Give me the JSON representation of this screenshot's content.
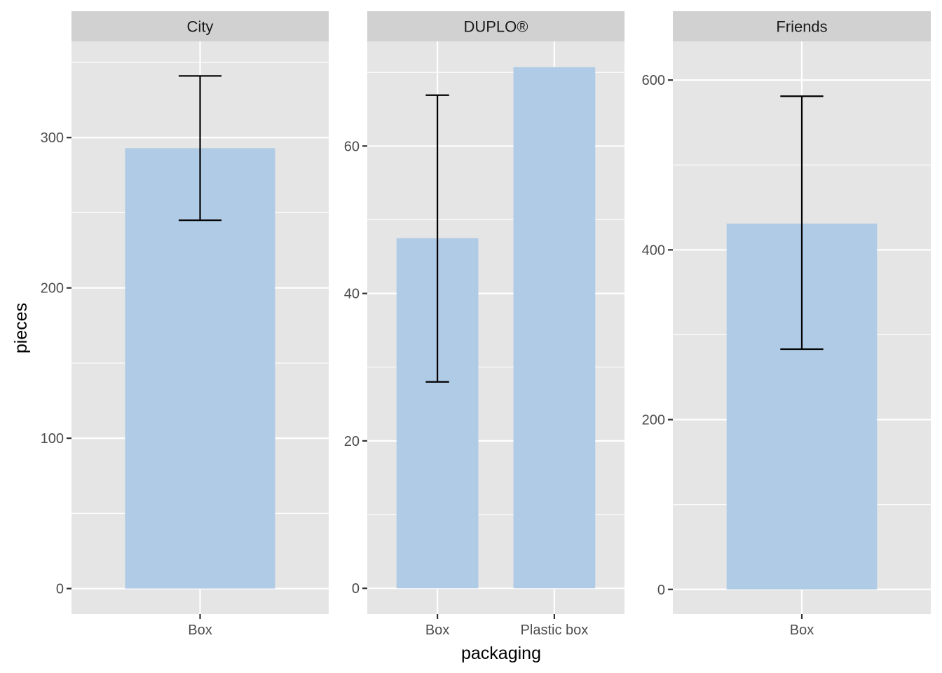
{
  "chart_data": {
    "type": "bar",
    "xlabel": "packaging",
    "ylabel": "pieces",
    "grid": true,
    "bar_color": "#b0cbe5",
    "panel_background": "#e5e5e5",
    "strip_background": "#d1d1d1",
    "errorbar_color": "#000000",
    "facets": [
      {
        "title": "City",
        "categories": [
          "Box"
        ],
        "values": [
          293
        ],
        "error_low": [
          245
        ],
        "error_high": [
          341
        ],
        "ylim": [
          -17,
          364
        ],
        "y_ticks": [
          0,
          100,
          200,
          300
        ]
      },
      {
        "title": "DUPLO®",
        "categories": [
          "Box",
          "Plastic box"
        ],
        "values": [
          47.5,
          70.7
        ],
        "error_low": [
          28.0,
          null
        ],
        "error_high": [
          66.9,
          null
        ],
        "ylim": [
          -3.5,
          74.2
        ],
        "y_ticks": [
          0,
          20,
          40,
          60
        ]
      },
      {
        "title": "Friends",
        "categories": [
          "Box"
        ],
        "values": [
          431
        ],
        "error_low": [
          283
        ],
        "error_high": [
          581
        ],
        "ylim": [
          -29.1,
          645.6
        ],
        "y_ticks": [
          0,
          200,
          400,
          600
        ]
      }
    ]
  }
}
